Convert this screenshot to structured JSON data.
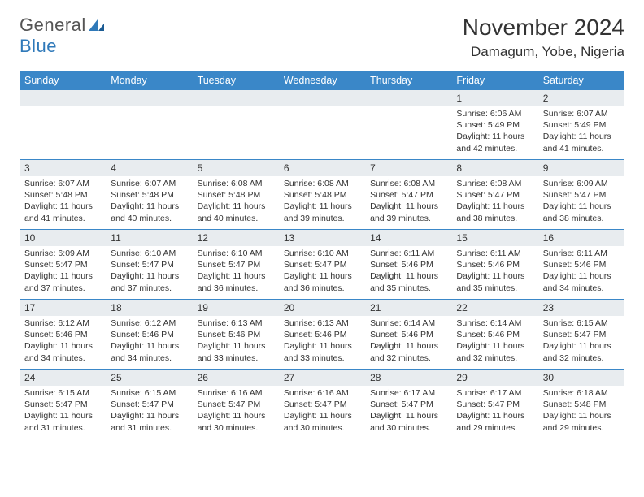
{
  "logo": {
    "text1": "General",
    "text2": "Blue"
  },
  "title": "November 2024",
  "location": "Damagum, Yobe, Nigeria",
  "colors": {
    "header_bg": "#3a87c8",
    "daynum_bg": "#e8ecef",
    "border": "#3a87c8",
    "logo_gray": "#555555",
    "logo_blue": "#2f79b9"
  },
  "weekdays": [
    "Sunday",
    "Monday",
    "Tuesday",
    "Wednesday",
    "Thursday",
    "Friday",
    "Saturday"
  ],
  "weeks": [
    [
      {
        "day": "",
        "sunrise": "",
        "sunset": "",
        "daylight": ""
      },
      {
        "day": "",
        "sunrise": "",
        "sunset": "",
        "daylight": ""
      },
      {
        "day": "",
        "sunrise": "",
        "sunset": "",
        "daylight": ""
      },
      {
        "day": "",
        "sunrise": "",
        "sunset": "",
        "daylight": ""
      },
      {
        "day": "",
        "sunrise": "",
        "sunset": "",
        "daylight": ""
      },
      {
        "day": "1",
        "sunrise": "Sunrise: 6:06 AM",
        "sunset": "Sunset: 5:49 PM",
        "daylight": "Daylight: 11 hours and 42 minutes."
      },
      {
        "day": "2",
        "sunrise": "Sunrise: 6:07 AM",
        "sunset": "Sunset: 5:49 PM",
        "daylight": "Daylight: 11 hours and 41 minutes."
      }
    ],
    [
      {
        "day": "3",
        "sunrise": "Sunrise: 6:07 AM",
        "sunset": "Sunset: 5:48 PM",
        "daylight": "Daylight: 11 hours and 41 minutes."
      },
      {
        "day": "4",
        "sunrise": "Sunrise: 6:07 AM",
        "sunset": "Sunset: 5:48 PM",
        "daylight": "Daylight: 11 hours and 40 minutes."
      },
      {
        "day": "5",
        "sunrise": "Sunrise: 6:08 AM",
        "sunset": "Sunset: 5:48 PM",
        "daylight": "Daylight: 11 hours and 40 minutes."
      },
      {
        "day": "6",
        "sunrise": "Sunrise: 6:08 AM",
        "sunset": "Sunset: 5:48 PM",
        "daylight": "Daylight: 11 hours and 39 minutes."
      },
      {
        "day": "7",
        "sunrise": "Sunrise: 6:08 AM",
        "sunset": "Sunset: 5:47 PM",
        "daylight": "Daylight: 11 hours and 39 minutes."
      },
      {
        "day": "8",
        "sunrise": "Sunrise: 6:08 AM",
        "sunset": "Sunset: 5:47 PM",
        "daylight": "Daylight: 11 hours and 38 minutes."
      },
      {
        "day": "9",
        "sunrise": "Sunrise: 6:09 AM",
        "sunset": "Sunset: 5:47 PM",
        "daylight": "Daylight: 11 hours and 38 minutes."
      }
    ],
    [
      {
        "day": "10",
        "sunrise": "Sunrise: 6:09 AM",
        "sunset": "Sunset: 5:47 PM",
        "daylight": "Daylight: 11 hours and 37 minutes."
      },
      {
        "day": "11",
        "sunrise": "Sunrise: 6:10 AM",
        "sunset": "Sunset: 5:47 PM",
        "daylight": "Daylight: 11 hours and 37 minutes."
      },
      {
        "day": "12",
        "sunrise": "Sunrise: 6:10 AM",
        "sunset": "Sunset: 5:47 PM",
        "daylight": "Daylight: 11 hours and 36 minutes."
      },
      {
        "day": "13",
        "sunrise": "Sunrise: 6:10 AM",
        "sunset": "Sunset: 5:47 PM",
        "daylight": "Daylight: 11 hours and 36 minutes."
      },
      {
        "day": "14",
        "sunrise": "Sunrise: 6:11 AM",
        "sunset": "Sunset: 5:46 PM",
        "daylight": "Daylight: 11 hours and 35 minutes."
      },
      {
        "day": "15",
        "sunrise": "Sunrise: 6:11 AM",
        "sunset": "Sunset: 5:46 PM",
        "daylight": "Daylight: 11 hours and 35 minutes."
      },
      {
        "day": "16",
        "sunrise": "Sunrise: 6:11 AM",
        "sunset": "Sunset: 5:46 PM",
        "daylight": "Daylight: 11 hours and 34 minutes."
      }
    ],
    [
      {
        "day": "17",
        "sunrise": "Sunrise: 6:12 AM",
        "sunset": "Sunset: 5:46 PM",
        "daylight": "Daylight: 11 hours and 34 minutes."
      },
      {
        "day": "18",
        "sunrise": "Sunrise: 6:12 AM",
        "sunset": "Sunset: 5:46 PM",
        "daylight": "Daylight: 11 hours and 34 minutes."
      },
      {
        "day": "19",
        "sunrise": "Sunrise: 6:13 AM",
        "sunset": "Sunset: 5:46 PM",
        "daylight": "Daylight: 11 hours and 33 minutes."
      },
      {
        "day": "20",
        "sunrise": "Sunrise: 6:13 AM",
        "sunset": "Sunset: 5:46 PM",
        "daylight": "Daylight: 11 hours and 33 minutes."
      },
      {
        "day": "21",
        "sunrise": "Sunrise: 6:14 AM",
        "sunset": "Sunset: 5:46 PM",
        "daylight": "Daylight: 11 hours and 32 minutes."
      },
      {
        "day": "22",
        "sunrise": "Sunrise: 6:14 AM",
        "sunset": "Sunset: 5:46 PM",
        "daylight": "Daylight: 11 hours and 32 minutes."
      },
      {
        "day": "23",
        "sunrise": "Sunrise: 6:15 AM",
        "sunset": "Sunset: 5:47 PM",
        "daylight": "Daylight: 11 hours and 32 minutes."
      }
    ],
    [
      {
        "day": "24",
        "sunrise": "Sunrise: 6:15 AM",
        "sunset": "Sunset: 5:47 PM",
        "daylight": "Daylight: 11 hours and 31 minutes."
      },
      {
        "day": "25",
        "sunrise": "Sunrise: 6:15 AM",
        "sunset": "Sunset: 5:47 PM",
        "daylight": "Daylight: 11 hours and 31 minutes."
      },
      {
        "day": "26",
        "sunrise": "Sunrise: 6:16 AM",
        "sunset": "Sunset: 5:47 PM",
        "daylight": "Daylight: 11 hours and 30 minutes."
      },
      {
        "day": "27",
        "sunrise": "Sunrise: 6:16 AM",
        "sunset": "Sunset: 5:47 PM",
        "daylight": "Daylight: 11 hours and 30 minutes."
      },
      {
        "day": "28",
        "sunrise": "Sunrise: 6:17 AM",
        "sunset": "Sunset: 5:47 PM",
        "daylight": "Daylight: 11 hours and 30 minutes."
      },
      {
        "day": "29",
        "sunrise": "Sunrise: 6:17 AM",
        "sunset": "Sunset: 5:47 PM",
        "daylight": "Daylight: 11 hours and 29 minutes."
      },
      {
        "day": "30",
        "sunrise": "Sunrise: 6:18 AM",
        "sunset": "Sunset: 5:48 PM",
        "daylight": "Daylight: 11 hours and 29 minutes."
      }
    ]
  ]
}
